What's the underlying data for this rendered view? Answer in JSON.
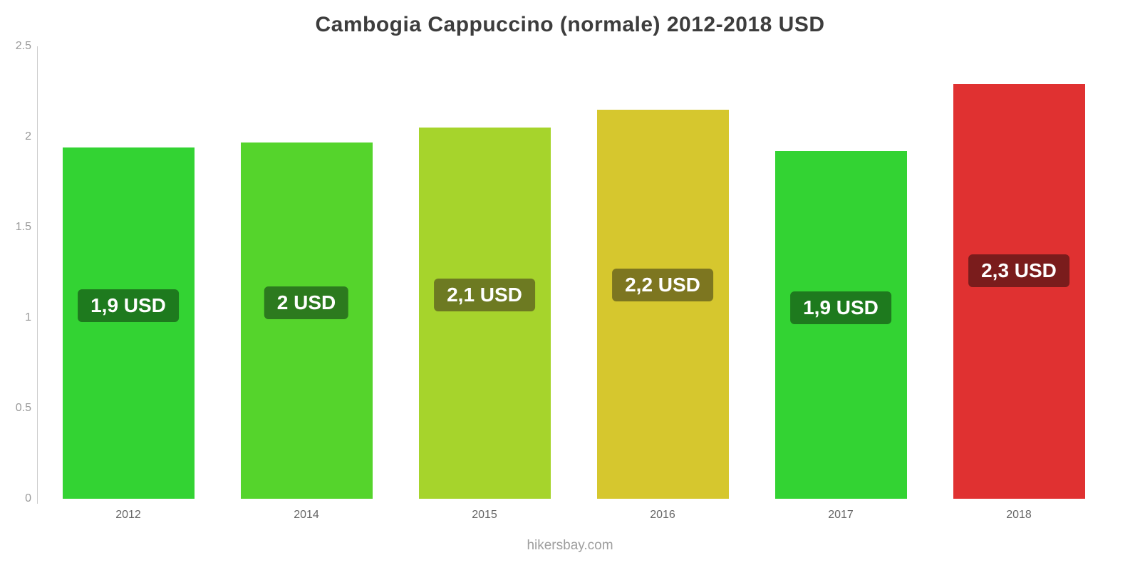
{
  "title": "Cambogia Cappuccino (normale) 2012-2018 USD",
  "footer": {
    "text": "hikersbay.com"
  },
  "chart_data": {
    "type": "bar",
    "title": "Cambogia Cappuccino (normale) 2012-2018 USD",
    "categories": [
      "2012",
      "2014",
      "2015",
      "2016",
      "2017",
      "2018"
    ],
    "values": [
      1.94,
      1.97,
      2.05,
      2.15,
      1.92,
      2.29
    ],
    "bar_labels": [
      "1,9 USD",
      "2 USD",
      "2,1 USD",
      "2,2 USD",
      "1,9 USD",
      "2,3 USD"
    ],
    "bar_colors": [
      "#33d333",
      "#55d42c",
      "#a6d42c",
      "#d6c72e",
      "#33d333",
      "#e03131"
    ],
    "label_bg_colors": [
      "#1e7a1e",
      "#2c7a1e",
      "#6d7a22",
      "#7d7620",
      "#1e7a1e",
      "#7a1c1c"
    ],
    "xlabel": "",
    "ylabel": "",
    "ylim": [
      0,
      2.5
    ],
    "yticks": [
      0,
      0.5,
      1,
      1.5,
      2,
      2.5
    ],
    "ytick_labels": [
      "0",
      "0.5",
      "1",
      "1.5",
      "2",
      "2.5"
    ],
    "grid": false,
    "legend": "none",
    "source": "hikersbay.com"
  }
}
